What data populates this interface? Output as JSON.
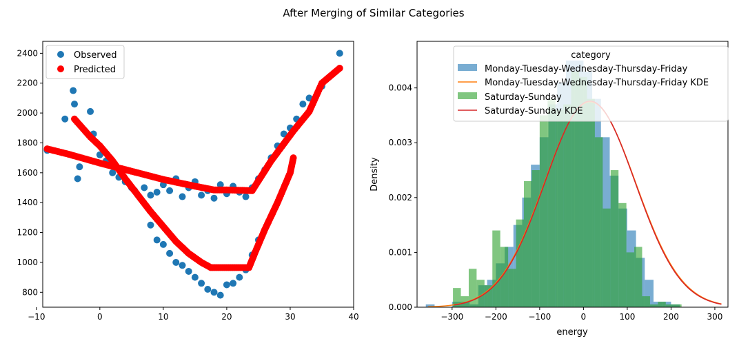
{
  "figure": {
    "suptitle": "After Merging of Similar Categories"
  },
  "chart_data": [
    {
      "type": "scatter",
      "title": "",
      "xlabel": "",
      "ylabel": "",
      "xlim": [
        -9,
        40
      ],
      "ylim": [
        700,
        2480
      ],
      "xticks": [
        -10,
        0,
        10,
        20,
        30,
        40
      ],
      "yticks": [
        800,
        1000,
        1200,
        1400,
        1600,
        1800,
        2000,
        2200,
        2400
      ],
      "grid": false,
      "legend": {
        "placement": "upper-left",
        "entries": [
          "Observed",
          "Predicted"
        ]
      },
      "colors": {
        "observed": "#1f77b4",
        "predicted": "#ff0000"
      },
      "observed_sample": {
        "x": [
          -8.3,
          -5.5,
          -4.2,
          -4.0,
          -3.5,
          -3.2,
          -1.5,
          -1.0,
          0.0,
          1.0,
          2.0,
          3.0,
          4.0,
          5.0,
          5.5,
          7.0,
          8.0,
          9.0,
          10.0,
          11.0,
          12.0,
          13.0,
          14.0,
          15.0,
          16.0,
          17.0,
          18.0,
          19.0,
          20.0,
          21.0,
          22.0,
          23.0,
          24.0,
          25.0,
          26.0,
          27.0,
          28.0,
          29.0,
          30.0,
          31.0,
          32.0,
          33.0,
          35.0,
          37.8,
          8.0,
          9.0,
          10.0,
          11.0,
          12.0,
          13.0,
          14.0,
          15.0,
          16.0,
          17.0,
          18.0,
          19.0,
          20.0,
          21.0,
          22.0,
          23.0,
          24.0,
          25.0
        ],
        "y": [
          1750,
          1960,
          2150,
          2060,
          1560,
          1640,
          2010,
          1860,
          1720,
          1680,
          1600,
          1570,
          1540,
          1500,
          1480,
          1500,
          1450,
          1470,
          1520,
          1480,
          1560,
          1440,
          1500,
          1540,
          1450,
          1480,
          1430,
          1520,
          1460,
          1510,
          1470,
          1440,
          1500,
          1560,
          1620,
          1700,
          1780,
          1860,
          1900,
          1960,
          2060,
          2100,
          2180,
          2400,
          1250,
          1150,
          1120,
          1060,
          1000,
          980,
          940,
          900,
          860,
          820,
          800,
          780,
          850,
          860,
          900,
          950,
          1050,
          1150
        ]
      },
      "predicted": {
        "regime_a": {
          "x": [
            -8.3,
            -5.0,
            0.0,
            5.0,
            10.0,
            15.0,
            18.0,
            20.0,
            24.0,
            27.0,
            30.5,
            33.0,
            35.0,
            37.8
          ],
          "y": [
            1760,
            1725,
            1665,
            1610,
            1555,
            1510,
            1485,
            1485,
            1480,
            1680,
            1880,
            2010,
            2200,
            2300
          ]
        },
        "regime_b": {
          "x": [
            -4.0,
            -1.5,
            0.0,
            2.0,
            4.0,
            6.0,
            8.0,
            10.0,
            12.0,
            14.0,
            16.0,
            17.5,
            20.0,
            23.5,
            24.5,
            26.0,
            28.0,
            30.0,
            30.5
          ],
          "y": [
            1960,
            1840,
            1780,
            1680,
            1560,
            1450,
            1340,
            1240,
            1140,
            1060,
            1000,
            965,
            965,
            965,
            1070,
            1220,
            1400,
            1600,
            1700
          ]
        }
      }
    },
    {
      "type": "histogram",
      "title": "",
      "xlabel": "energy",
      "ylabel": "Density",
      "xlim": [
        -380,
        330
      ],
      "ylim": [
        0,
        0.00485
      ],
      "xticks": [
        -300,
        -200,
        -100,
        0,
        100,
        200,
        300
      ],
      "xtick_labels": [
        "−300",
        "−200",
        "−100",
        "0",
        "100",
        "200",
        "300"
      ],
      "yticks": [
        0.0,
        0.001,
        0.002,
        0.003,
        0.004
      ],
      "ytick_labels": [
        "0.000",
        "0.001",
        "0.002",
        "0.003",
        "0.004"
      ],
      "grid": false,
      "legend": {
        "title": "category",
        "placement": "upper-right",
        "entries": [
          "Monday-Tuesday-Wednesday-Thursday-Friday",
          "Monday-Tuesday-Wednesday-Thursday-Friday KDE",
          "Saturday-Sunday",
          "Saturday-Sunday KDE"
        ]
      },
      "series": [
        {
          "name": "Monday-Tuesday-Wednesday-Thursday-Friday",
          "color": "#1f77b4",
          "bin_start": -360,
          "bin_width": 20,
          "density": [
            5e-05,
            0.0,
            0.0,
            0.0001,
            0.0001,
            5e-05,
            0.0004,
            0.0005,
            0.0008,
            0.0011,
            0.0015,
            0.002,
            0.0026,
            0.0031,
            0.0037,
            0.0041,
            0.0045,
            0.0045,
            0.0043,
            0.0038,
            0.0031,
            0.0024,
            0.0018,
            0.0014,
            0.0009,
            0.0005,
            0.0001,
            0.0001,
            5e-05,
            0.0,
            0.0,
            0.0,
            0.0,
            0.0,
            0.0,
            0.0
          ]
        },
        {
          "name": "Saturday-Sunday",
          "color": "#2ca02c",
          "bin_start": -298,
          "bin_width": 18,
          "density": [
            0.00035,
            0.0002,
            0.0007,
            0.0005,
            0.0004,
            0.0014,
            0.0011,
            0.0007,
            0.0016,
            0.0023,
            0.0025,
            0.0035,
            0.0038,
            0.0036,
            0.0037,
            0.0043,
            0.0042,
            0.0038,
            0.0031,
            0.0018,
            0.0025,
            0.0019,
            0.001,
            0.0011,
            0.0002,
            5e-05,
            0.0001,
            5e-05,
            5e-05,
            0.0,
            0.0,
            0.0
          ]
        },
        {
          "name": "Monday-Tuesday-Wednesday-Thursday-Friday KDE",
          "color": "#ff7f0e",
          "kde_mean": 15,
          "kde_sd": 104,
          "kde_peak": 0.00375,
          "kde_range": [
            -355,
            315
          ]
        },
        {
          "name": "Saturday-Sunday KDE",
          "color": "#d62728",
          "kde_mean": 15,
          "kde_sd": 103,
          "kde_peak": 0.00376,
          "kde_range": [
            -295,
            315
          ]
        }
      ]
    }
  ]
}
